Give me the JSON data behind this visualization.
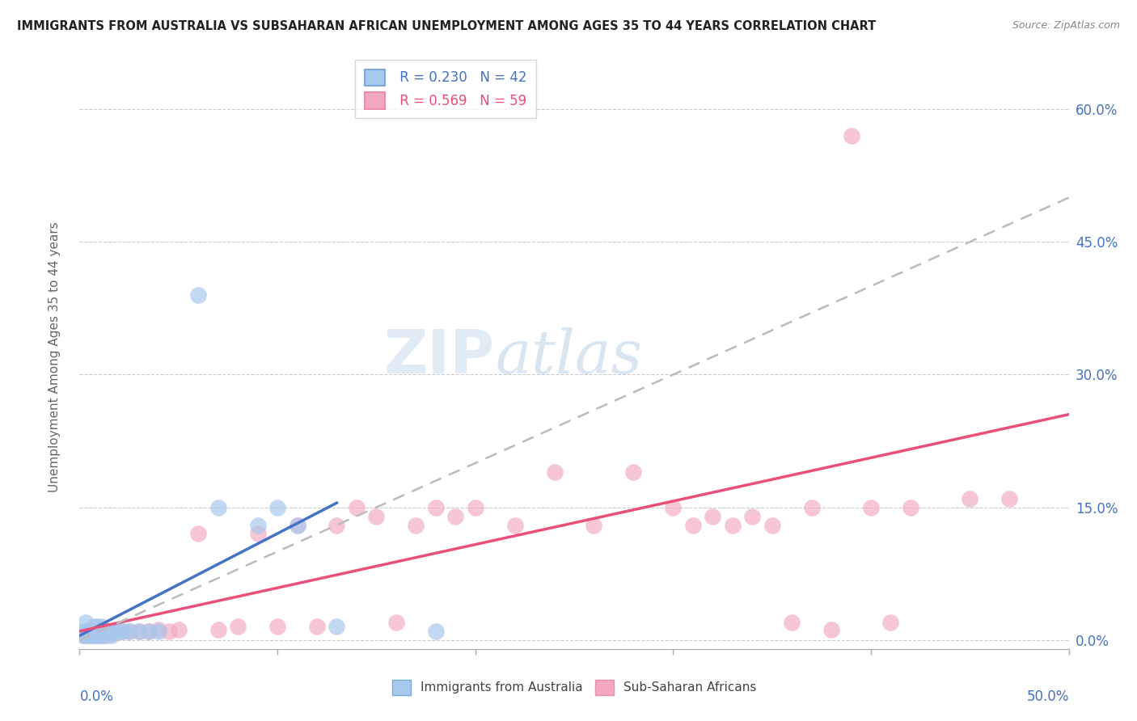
{
  "title": "IMMIGRANTS FROM AUSTRALIA VS SUBSAHARAN AFRICAN UNEMPLOYMENT AMONG AGES 35 TO 44 YEARS CORRELATION CHART",
  "source": "Source: ZipAtlas.com",
  "ylabel": "Unemployment Among Ages 35 to 44 years",
  "right_yticks": [
    "0.0%",
    "15.0%",
    "30.0%",
    "45.0%",
    "60.0%"
  ],
  "right_ytick_vals": [
    0.0,
    0.15,
    0.3,
    0.45,
    0.6
  ],
  "xlim": [
    0.0,
    0.5
  ],
  "ylim": [
    -0.01,
    0.65
  ],
  "legend_r1": "R = 0.230",
  "legend_n1": "N = 42",
  "legend_r2": "R = 0.569",
  "legend_n2": "N = 59",
  "color_blue": "#A8C8EE",
  "color_pink": "#F4A8C0",
  "color_blue_line": "#4472C4",
  "color_pink_line": "#E8507A",
  "watermark_zip": "ZIP",
  "watermark_atlas": "atlas",
  "aus_x": [
    0.002,
    0.002,
    0.003,
    0.003,
    0.003,
    0.004,
    0.004,
    0.005,
    0.005,
    0.006,
    0.006,
    0.007,
    0.007,
    0.008,
    0.008,
    0.009,
    0.009,
    0.01,
    0.01,
    0.011,
    0.011,
    0.012,
    0.012,
    0.013,
    0.014,
    0.015,
    0.016,
    0.017,
    0.018,
    0.02,
    0.022,
    0.025,
    0.03,
    0.035,
    0.04,
    0.06,
    0.07,
    0.09,
    0.1,
    0.11,
    0.13,
    0.18
  ],
  "aus_y": [
    0.005,
    0.01,
    0.005,
    0.01,
    0.02,
    0.005,
    0.01,
    0.005,
    0.01,
    0.005,
    0.01,
    0.005,
    0.015,
    0.005,
    0.01,
    0.005,
    0.015,
    0.005,
    0.01,
    0.005,
    0.015,
    0.005,
    0.01,
    0.01,
    0.005,
    0.01,
    0.005,
    0.01,
    0.01,
    0.01,
    0.01,
    0.01,
    0.01,
    0.01,
    0.01,
    0.39,
    0.15,
    0.13,
    0.15,
    0.13,
    0.015,
    0.01
  ],
  "sub_x": [
    0.002,
    0.003,
    0.004,
    0.005,
    0.006,
    0.007,
    0.008,
    0.009,
    0.01,
    0.011,
    0.012,
    0.013,
    0.014,
    0.015,
    0.016,
    0.017,
    0.018,
    0.02,
    0.022,
    0.025,
    0.03,
    0.035,
    0.04,
    0.045,
    0.05,
    0.06,
    0.07,
    0.08,
    0.09,
    0.1,
    0.11,
    0.12,
    0.13,
    0.14,
    0.15,
    0.16,
    0.17,
    0.18,
    0.19,
    0.2,
    0.22,
    0.24,
    0.26,
    0.28,
    0.3,
    0.31,
    0.32,
    0.33,
    0.34,
    0.35,
    0.36,
    0.37,
    0.38,
    0.39,
    0.4,
    0.41,
    0.42,
    0.45,
    0.47
  ],
  "sub_y": [
    0.005,
    0.008,
    0.005,
    0.01,
    0.005,
    0.01,
    0.005,
    0.01,
    0.005,
    0.01,
    0.005,
    0.01,
    0.008,
    0.01,
    0.008,
    0.01,
    0.008,
    0.01,
    0.01,
    0.01,
    0.01,
    0.01,
    0.012,
    0.01,
    0.012,
    0.12,
    0.012,
    0.015,
    0.12,
    0.015,
    0.13,
    0.015,
    0.13,
    0.15,
    0.14,
    0.02,
    0.13,
    0.15,
    0.14,
    0.15,
    0.13,
    0.19,
    0.13,
    0.19,
    0.15,
    0.13,
    0.14,
    0.13,
    0.14,
    0.13,
    0.02,
    0.15,
    0.012,
    0.57,
    0.15,
    0.02,
    0.15,
    0.16,
    0.16
  ],
  "blue_line": [
    [
      0.002,
      0.0,
      0.13
    ],
    [
      0.005,
      0.0,
      0.15
    ]
  ],
  "dash_line": [
    [
      0.0,
      0.5
    ],
    [
      0.0,
      0.5
    ]
  ],
  "pink_line": [
    [
      0.0,
      0.5
    ],
    [
      0.0,
      0.25
    ]
  ]
}
